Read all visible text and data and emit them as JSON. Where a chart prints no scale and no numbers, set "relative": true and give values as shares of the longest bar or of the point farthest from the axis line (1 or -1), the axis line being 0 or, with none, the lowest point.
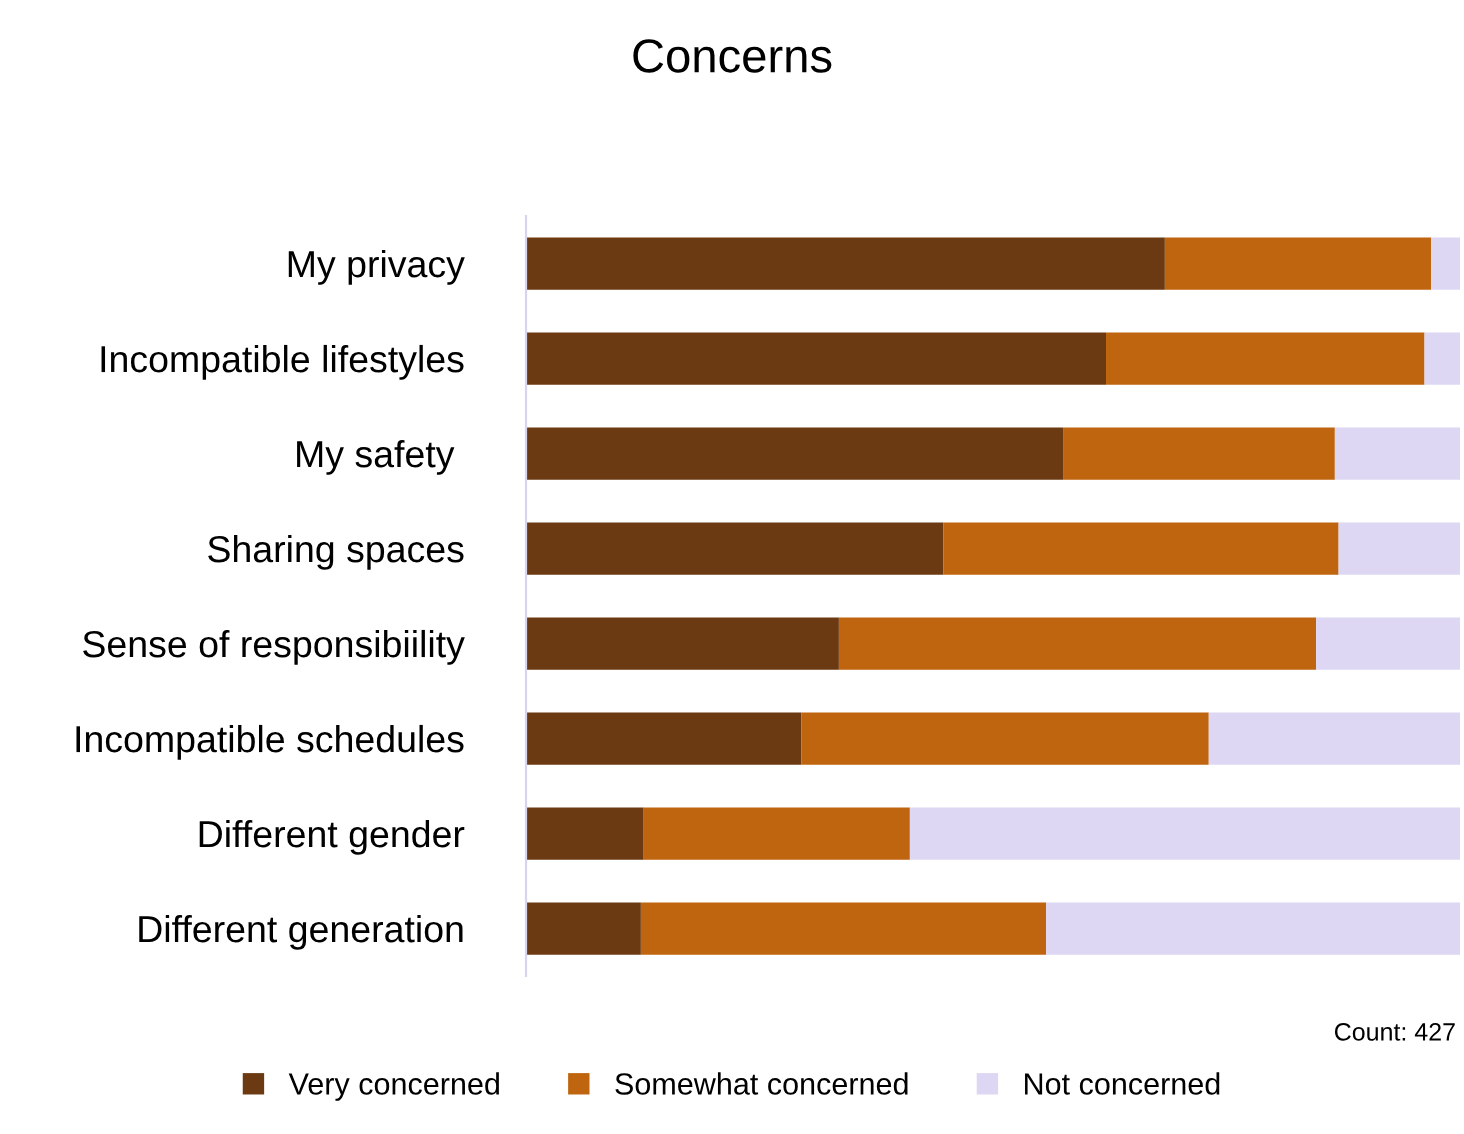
{
  "chart_data": {
    "type": "bar",
    "title": "Concerns",
    "orientation": "horizontal",
    "stacked": true,
    "relative": true,
    "categories": [
      "My privacy",
      "Incompatible lifestyles",
      "My safety ",
      "Sharing spaces",
      "Sense of responsibiility",
      "Incompatible schedules",
      "Different gender",
      "Different generation"
    ],
    "series": [
      {
        "name": "Very concerned",
        "color": "#6b3a12",
        "values": [
          0.684,
          0.621,
          0.575,
          0.447,
          0.335,
          0.295,
          0.126,
          0.123
        ]
      },
      {
        "name": "Somewhat concerned",
        "color": "#c0650f",
        "values": [
          0.285,
          0.341,
          0.291,
          0.423,
          0.511,
          0.436,
          0.285,
          0.434
        ]
      },
      {
        "name": "Not concerned",
        "color": "#ddd7f3",
        "values": [
          0.031,
          0.038,
          0.134,
          0.13,
          0.154,
          0.269,
          0.589,
          0.443
        ]
      }
    ],
    "annotations": [
      "Count: 427"
    ],
    "legend": "bottom",
    "grid": false
  }
}
